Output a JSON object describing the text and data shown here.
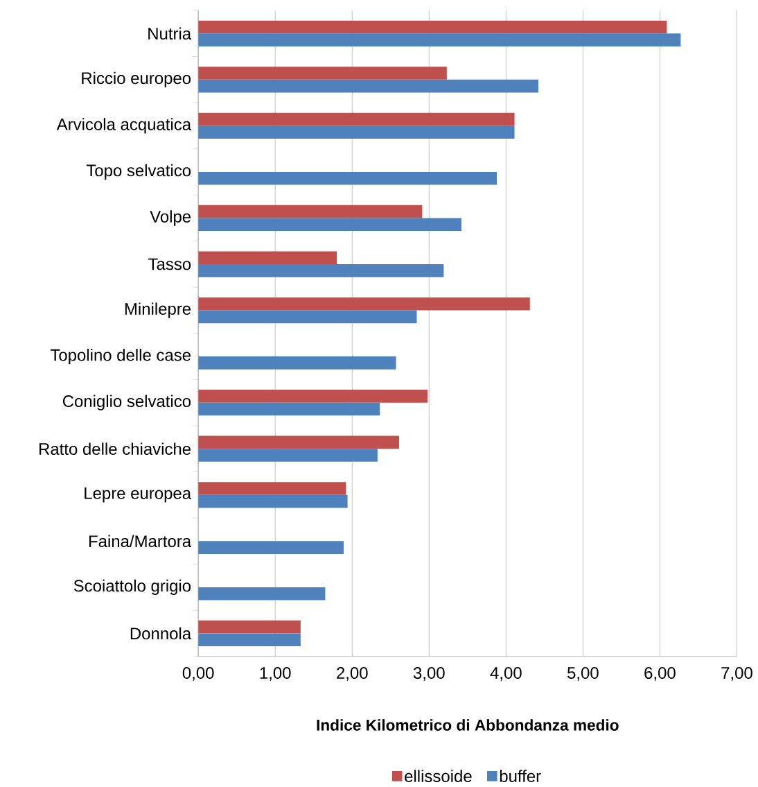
{
  "chart_data": {
    "type": "bar",
    "orientation": "horizontal",
    "categories": [
      "Nutria",
      "Riccio europeo",
      "Arvicola acquatica",
      "Topo selvatico",
      "Volpe",
      "Tasso",
      "Minilepre",
      "Topolino delle case",
      "Coniglio selvatico",
      "Ratto delle chiaviche",
      "Lepre europea",
      "Faina/Martora",
      "Scoiattolo grigio",
      "Donnola"
    ],
    "series": [
      {
        "name": "ellissoide",
        "color": "#c0504d",
        "values": [
          6.09,
          3.23,
          4.11,
          null,
          2.91,
          1.8,
          4.31,
          null,
          2.98,
          2.61,
          1.92,
          null,
          null,
          1.33
        ]
      },
      {
        "name": "buffer",
        "color": "#4f81bd",
        "values": [
          6.27,
          4.42,
          4.11,
          3.88,
          3.42,
          3.19,
          2.84,
          2.57,
          2.36,
          2.33,
          1.94,
          1.89,
          1.65,
          1.33
        ]
      }
    ],
    "xlabel": "**Indice Kilometrico di Abbondanza medio**",
    "xlim": [
      0,
      7
    ],
    "xticks": [
      {
        "value": 0,
        "label": "0,00"
      },
      {
        "value": 1,
        "label": "1,00"
      },
      {
        "value": 2,
        "label": "2,00"
      },
      {
        "value": 3,
        "label": "3,00"
      },
      {
        "value": 4,
        "label": "4,00"
      },
      {
        "value": 5,
        "label": "5,00"
      },
      {
        "value": 6,
        "label": "6,00"
      },
      {
        "value": 7,
        "label": "7,00"
      }
    ],
    "grid": "x",
    "legend": "bottom"
  }
}
